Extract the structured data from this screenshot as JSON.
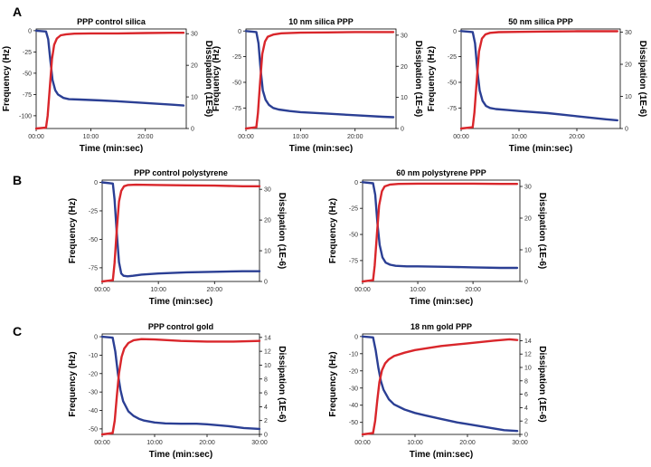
{
  "figure": {
    "panel_labels": [
      "A",
      "B",
      "C"
    ]
  },
  "colors": {
    "frequency": "#2b3f94",
    "dissipation": "#d9262b",
    "axis": "#000000",
    "tick_text": "#333333"
  },
  "chart_data": [
    {
      "type": "line",
      "title": "PPP control silica",
      "xlabel": "Time (min:sec)",
      "ylabel": "Frequency (Hz)",
      "y2label": "Dissipation (1E-6)",
      "xlim": [
        0,
        27.5
      ],
      "ylim": [
        -115,
        2
      ],
      "y2lim": [
        0,
        31.5
      ],
      "xticks": [
        {
          "v": 0,
          "label": "00:00"
        },
        {
          "v": 10,
          "label": "10:00"
        },
        {
          "v": 20,
          "label": "20:00"
        }
      ],
      "yticks": [
        {
          "v": 0,
          "label": "0"
        },
        {
          "v": -25,
          "label": "-25"
        },
        {
          "v": -50,
          "label": "-50"
        },
        {
          "v": -75,
          "label": "-75"
        },
        {
          "v": -100,
          "label": "-100"
        }
      ],
      "y2ticks": [
        {
          "v": 0,
          "label": "0"
        },
        {
          "v": 10,
          "label": "10"
        },
        {
          "v": 20,
          "label": "20"
        },
        {
          "v": 30,
          "label": "30"
        }
      ],
      "series": [
        {
          "name": "Frequency",
          "axis": "left",
          "color": "#2b3f94",
          "x": [
            0,
            1.8,
            2.2,
            2.6,
            3.0,
            3.5,
            4.0,
            5.0,
            6.0,
            8.0,
            10.0,
            12.0,
            15.0,
            20.0,
            25.0,
            27.0
          ],
          "y": [
            0,
            -1,
            -10,
            -35,
            -58,
            -70,
            -75,
            -79,
            -80.5,
            -81,
            -81.5,
            -82,
            -83,
            -85,
            -87,
            -88
          ]
        },
        {
          "name": "Dissipation",
          "axis": "right",
          "color": "#d9262b",
          "x": [
            0,
            1.8,
            2.1,
            2.5,
            2.9,
            3.3,
            3.8,
            4.5,
            5.5,
            7.0,
            10.0,
            15.0,
            20.0,
            25.0,
            27.0
          ],
          "y": [
            0,
            0.3,
            4,
            13,
            22,
            26.5,
            28.5,
            29.5,
            29.8,
            30,
            30.1,
            30.1,
            30.2,
            30.3,
            30.3
          ]
        }
      ]
    },
    {
      "type": "line",
      "title": "10 nm silica PPP",
      "xlabel": "Time (min:sec)",
      "ylabel": "Frequency (Hz)",
      "y2label": "Dissipation (1E-6)",
      "xlim": [
        0,
        27.5
      ],
      "ylim": [
        -95,
        2
      ],
      "y2lim": [
        0,
        32
      ],
      "xticks": [
        {
          "v": 0,
          "label": "00:00"
        },
        {
          "v": 10,
          "label": "10:00"
        },
        {
          "v": 20,
          "label": "20:00"
        }
      ],
      "yticks": [
        {
          "v": 0,
          "label": "0"
        },
        {
          "v": -25,
          "label": "-25"
        },
        {
          "v": -50,
          "label": "-50"
        },
        {
          "v": -75,
          "label": "-75"
        }
      ],
      "y2ticks": [
        {
          "v": 0,
          "label": "0"
        },
        {
          "v": 10,
          "label": "10"
        },
        {
          "v": 20,
          "label": "20"
        },
        {
          "v": 30,
          "label": "30"
        }
      ],
      "series": [
        {
          "name": "Frequency",
          "axis": "left",
          "color": "#2b3f94",
          "x": [
            0,
            1.9,
            2.3,
            2.7,
            3.1,
            3.6,
            4.2,
            5.0,
            6.0,
            8.0,
            10.0,
            15.0,
            20.0,
            25.0,
            27.0
          ],
          "y": [
            0,
            -1,
            -12,
            -38,
            -58,
            -67,
            -72,
            -75,
            -76.5,
            -78,
            -79,
            -80.5,
            -82,
            -83.5,
            -84
          ]
        },
        {
          "name": "Dissipation",
          "axis": "right",
          "color": "#d9262b",
          "x": [
            0,
            1.9,
            2.2,
            2.6,
            3.0,
            3.5,
            4.0,
            5.0,
            6.5,
            10.0,
            15.0,
            20.0,
            25.0,
            27.0
          ],
          "y": [
            0,
            0.4,
            5,
            15,
            24,
            28,
            29.5,
            30.2,
            30.6,
            30.8,
            30.9,
            31,
            31,
            31
          ]
        }
      ]
    },
    {
      "type": "line",
      "title": "50 nm silica PPP",
      "xlabel": "Time (min:sec)",
      "ylabel": "Frequency (Hz)",
      "y2label": "Dissipation (1E-6)",
      "xlim": [
        0,
        27.5
      ],
      "ylim": [
        -95,
        2
      ],
      "y2lim": [
        0,
        31
      ],
      "xticks": [
        {
          "v": 0,
          "label": "00:00"
        },
        {
          "v": 10,
          "label": "10:00"
        },
        {
          "v": 20,
          "label": "20:00"
        }
      ],
      "yticks": [
        {
          "v": 0,
          "label": "0"
        },
        {
          "v": -25,
          "label": "-25"
        },
        {
          "v": -50,
          "label": "-50"
        },
        {
          "v": -75,
          "label": "-75"
        }
      ],
      "y2ticks": [
        {
          "v": 0,
          "label": "0"
        },
        {
          "v": 10,
          "label": "10"
        },
        {
          "v": 20,
          "label": "20"
        },
        {
          "v": 30,
          "label": "30"
        }
      ],
      "series": [
        {
          "name": "Frequency",
          "axis": "left",
          "color": "#2b3f94",
          "x": [
            0,
            2.0,
            2.4,
            2.8,
            3.2,
            3.7,
            4.3,
            5.0,
            6.0,
            8.0,
            10.0,
            15.0,
            20.0,
            25.0,
            27.0
          ],
          "y": [
            0,
            -1,
            -12,
            -38,
            -58,
            -68,
            -73,
            -75,
            -76,
            -77,
            -78,
            -80,
            -83,
            -86,
            -87
          ]
        },
        {
          "name": "Dissipation",
          "axis": "right",
          "color": "#d9262b",
          "x": [
            0,
            2.0,
            2.3,
            2.7,
            3.1,
            3.6,
            4.2,
            5.0,
            6.5,
            10.0,
            15.0,
            20.0,
            25.0,
            27.0
          ],
          "y": [
            0,
            0.4,
            5,
            15,
            24,
            28,
            29.3,
            29.8,
            30,
            30.1,
            30.2,
            30.3,
            30.3,
            30.3
          ]
        }
      ]
    },
    {
      "type": "line",
      "title": "PPP control polystyrene",
      "xlabel": "Time (min:sec)",
      "ylabel": "Frequency (Hz)",
      "y2label": "Dissipation (1E-6)",
      "xlim": [
        0,
        28
      ],
      "ylim": [
        -87,
        2
      ],
      "y2lim": [
        0,
        33
      ],
      "xticks": [
        {
          "v": 0,
          "label": "00:00"
        },
        {
          "v": 10,
          "label": "10:00"
        },
        {
          "v": 20,
          "label": "20:00"
        }
      ],
      "yticks": [
        {
          "v": 0,
          "label": "0"
        },
        {
          "v": -25,
          "label": "-25"
        },
        {
          "v": -50,
          "label": "-50"
        },
        {
          "v": -75,
          "label": "-75"
        }
      ],
      "y2ticks": [
        {
          "v": 0,
          "label": "0"
        },
        {
          "v": 10,
          "label": "10"
        },
        {
          "v": 20,
          "label": "20"
        },
        {
          "v": 30,
          "label": "30"
        }
      ],
      "series": [
        {
          "name": "Frequency",
          "axis": "left",
          "color": "#2b3f94",
          "x": [
            0,
            1.9,
            2.2,
            2.6,
            3.0,
            3.4,
            3.8,
            4.5,
            5.5,
            7.0,
            10.0,
            15.0,
            20.0,
            25.0,
            28.0
          ],
          "y": [
            0,
            -1,
            -15,
            -45,
            -70,
            -80,
            -82,
            -82.5,
            -82,
            -81,
            -80,
            -79,
            -78.5,
            -78,
            -78
          ]
        },
        {
          "name": "Dissipation",
          "axis": "right",
          "color": "#d9262b",
          "x": [
            0,
            1.9,
            2.2,
            2.6,
            3.0,
            3.4,
            3.9,
            4.6,
            6.0,
            10.0,
            15.0,
            20.0,
            25.0,
            28.0
          ],
          "y": [
            0,
            0.4,
            6,
            17,
            26,
            29.5,
            31,
            31.4,
            31.5,
            31.4,
            31.3,
            31.2,
            31,
            31
          ]
        }
      ]
    },
    {
      "type": "line",
      "title": "60 nm polystyrene PPP",
      "xlabel": "Time (min:sec)",
      "ylabel": "Frequency (Hz)",
      "y2label": "Dissipation (1E-6)",
      "xlim": [
        0,
        28.5
      ],
      "ylim": [
        -95,
        2
      ],
      "y2lim": [
        0,
        32
      ],
      "xticks": [
        {
          "v": 0,
          "label": "00:00"
        },
        {
          "v": 10,
          "label": "10:00"
        },
        {
          "v": 20,
          "label": "20:00"
        }
      ],
      "yticks": [
        {
          "v": 0,
          "label": "0"
        },
        {
          "v": -25,
          "label": "-25"
        },
        {
          "v": -50,
          "label": "-50"
        },
        {
          "v": -75,
          "label": "-75"
        }
      ],
      "y2ticks": [
        {
          "v": 0,
          "label": "0"
        },
        {
          "v": 10,
          "label": "10"
        },
        {
          "v": 20,
          "label": "20"
        },
        {
          "v": 30,
          "label": "30"
        }
      ],
      "series": [
        {
          "name": "Frequency",
          "axis": "left",
          "color": "#2b3f94",
          "x": [
            0,
            1.9,
            2.3,
            2.7,
            3.1,
            3.6,
            4.2,
            5.0,
            6.0,
            8.0,
            10.0,
            15.0,
            20.0,
            25.0,
            28.0
          ],
          "y": [
            0,
            -1,
            -12,
            -40,
            -60,
            -72,
            -77,
            -79,
            -80,
            -80.5,
            -80.5,
            -81,
            -81.5,
            -82,
            -82
          ]
        },
        {
          "name": "Dissipation",
          "axis": "right",
          "color": "#d9262b",
          "x": [
            0,
            1.9,
            2.2,
            2.6,
            3.0,
            3.5,
            4.0,
            5.0,
            6.5,
            10.0,
            15.0,
            20.0,
            25.0,
            28.0
          ],
          "y": [
            0,
            0.4,
            5,
            15,
            24,
            28.5,
            30,
            30.6,
            30.8,
            30.9,
            30.9,
            30.9,
            30.8,
            30.8
          ]
        }
      ]
    },
    {
      "type": "line",
      "title": "PPP control gold",
      "xlabel": "Time (min:sec)",
      "ylabel": "Frequency (Hz)",
      "y2label": "Dissipation (1E-6)",
      "xlim": [
        0,
        30
      ],
      "ylim": [
        -53,
        1.5
      ],
      "y2lim": [
        0,
        14.5
      ],
      "xticks": [
        {
          "v": 0,
          "label": "00:00"
        },
        {
          "v": 10,
          "label": "10:00"
        },
        {
          "v": 20,
          "label": "20:00"
        },
        {
          "v": 30,
          "label": "30:00"
        }
      ],
      "yticks": [
        {
          "v": 0,
          "label": "0"
        },
        {
          "v": -10,
          "label": "-10"
        },
        {
          "v": -20,
          "label": "-20"
        },
        {
          "v": -30,
          "label": "-30"
        },
        {
          "v": -40,
          "label": "-40"
        },
        {
          "v": -50,
          "label": "-50"
        }
      ],
      "y2ticks": [
        {
          "v": 0,
          "label": "0"
        },
        {
          "v": 2,
          "label": "2"
        },
        {
          "v": 4,
          "label": "4"
        },
        {
          "v": 6,
          "label": "6"
        },
        {
          "v": 8,
          "label": "8"
        },
        {
          "v": 10,
          "label": "10"
        },
        {
          "v": 12,
          "label": "12"
        },
        {
          "v": 14,
          "label": "14"
        }
      ],
      "series": [
        {
          "name": "Frequency",
          "axis": "left",
          "color": "#2b3f94",
          "x": [
            0,
            2.0,
            2.5,
            3.0,
            3.5,
            4.0,
            5.0,
            6.0,
            7.0,
            8.0,
            10.0,
            12.0,
            15.0,
            18.0,
            20.0,
            24.0,
            27.0,
            30.0
          ],
          "y": [
            0,
            -0.5,
            -8,
            -20,
            -29,
            -35,
            -40.5,
            -43,
            -44.5,
            -45.5,
            -46.5,
            -47,
            -47.2,
            -47.2,
            -47.5,
            -48.5,
            -49.5,
            -50
          ]
        },
        {
          "name": "Dissipation",
          "axis": "right",
          "color": "#d9262b",
          "x": [
            0,
            2.0,
            2.4,
            2.8,
            3.2,
            3.7,
            4.2,
            5.0,
            6.0,
            7.5,
            10.0,
            15.0,
            20.0,
            25.0,
            30.0
          ],
          "y": [
            0,
            0.2,
            2,
            5.5,
            8.8,
            11.2,
            12.4,
            13.2,
            13.6,
            13.75,
            13.7,
            13.5,
            13.4,
            13.4,
            13.5
          ]
        }
      ]
    },
    {
      "type": "line",
      "title": "18 nm gold PPP",
      "xlabel": "Time (min:sec)",
      "ylabel": "Frequency (Hz)",
      "y2label": "Dissipation (1E-6)",
      "xlim": [
        0,
        30
      ],
      "ylim": [
        -57,
        1.5
      ],
      "y2lim": [
        0,
        15
      ],
      "xticks": [
        {
          "v": 0,
          "label": "00:00"
        },
        {
          "v": 10,
          "label": "10:00"
        },
        {
          "v": 20,
          "label": "20:00"
        },
        {
          "v": 30,
          "label": "30:00"
        }
      ],
      "yticks": [
        {
          "v": 0,
          "label": "0"
        },
        {
          "v": -10,
          "label": "-10"
        },
        {
          "v": -20,
          "label": "-20"
        },
        {
          "v": -30,
          "label": "-30"
        },
        {
          "v": -40,
          "label": "-40"
        },
        {
          "v": -50,
          "label": "-50"
        }
      ],
      "y2ticks": [
        {
          "v": 0,
          "label": "0"
        },
        {
          "v": 2,
          "label": "2"
        },
        {
          "v": 4,
          "label": "4"
        },
        {
          "v": 6,
          "label": "6"
        },
        {
          "v": 8,
          "label": "8"
        },
        {
          "v": 10,
          "label": "10"
        },
        {
          "v": 12,
          "label": "12"
        },
        {
          "v": 14,
          "label": "14"
        }
      ],
      "series": [
        {
          "name": "Frequency",
          "axis": "left",
          "color": "#2b3f94",
          "x": [
            0,
            2.0,
            2.5,
            3.0,
            3.5,
            4.0,
            5.0,
            6.0,
            8.0,
            10.0,
            12.0,
            15.0,
            18.0,
            20.0,
            24.0,
            27.0,
            29.5
          ],
          "y": [
            0,
            -0.5,
            -8,
            -18,
            -26,
            -31,
            -36.5,
            -39.5,
            -42.5,
            -44.5,
            -46,
            -48,
            -50,
            -51,
            -53,
            -54.5,
            -55
          ]
        },
        {
          "name": "Dissipation",
          "axis": "right",
          "color": "#d9262b",
          "x": [
            0,
            2.0,
            2.4,
            2.8,
            3.2,
            3.7,
            4.3,
            5.0,
            6.0,
            8.0,
            10.0,
            15.0,
            20.0,
            25.0,
            28.0,
            29.5
          ],
          "y": [
            0,
            0.2,
            2,
            5,
            7.8,
            9.6,
            10.6,
            11.2,
            11.7,
            12.2,
            12.6,
            13.2,
            13.6,
            14,
            14.2,
            14.1
          ]
        }
      ]
    }
  ]
}
